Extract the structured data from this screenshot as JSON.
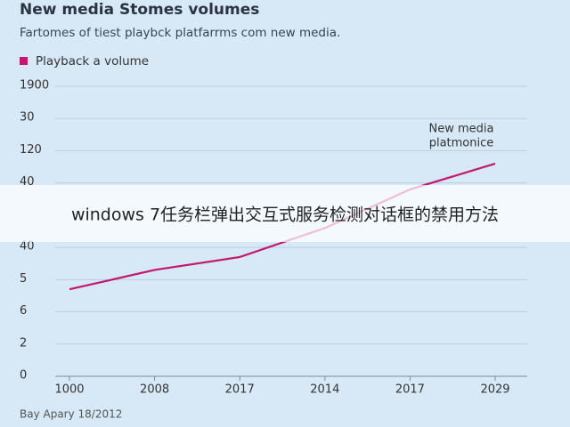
{
  "chart_data": {
    "type": "line",
    "title": "New media Stomes volumes",
    "subtitle": "Fartomes of tiest playbck platfarrms com new media.",
    "categories": [
      "1000",
      "2008",
      "2017",
      "2014",
      "2017",
      "2029"
    ],
    "series": [
      {
        "name": "Playback a volume",
        "color": "#c2186f",
        "values": [
          2.7,
          3.3,
          3.7,
          4.6,
          5.8,
          6.6
        ]
      }
    ],
    "ylim": [
      0,
      9
    ],
    "yticks": [
      0,
      {
        "value": 1,
        "label": "2"
      },
      {
        "value": 2,
        "label": "6"
      },
      {
        "value": 3,
        "label": "5"
      },
      {
        "value": 4,
        "label": "40"
      },
      {
        "value": 6,
        "label": "40"
      },
      {
        "value": 7,
        "label": "120"
      },
      {
        "value": 8,
        "label": "30"
      },
      {
        "value": 9,
        "label": "1900"
      }
    ],
    "grid": true,
    "annotation": [
      "New media",
      "platmonice"
    ],
    "source": "Bay Apary 18/2012"
  },
  "banner": "windows 7任务栏弹出交互式服务检测对话框的禁用方法"
}
